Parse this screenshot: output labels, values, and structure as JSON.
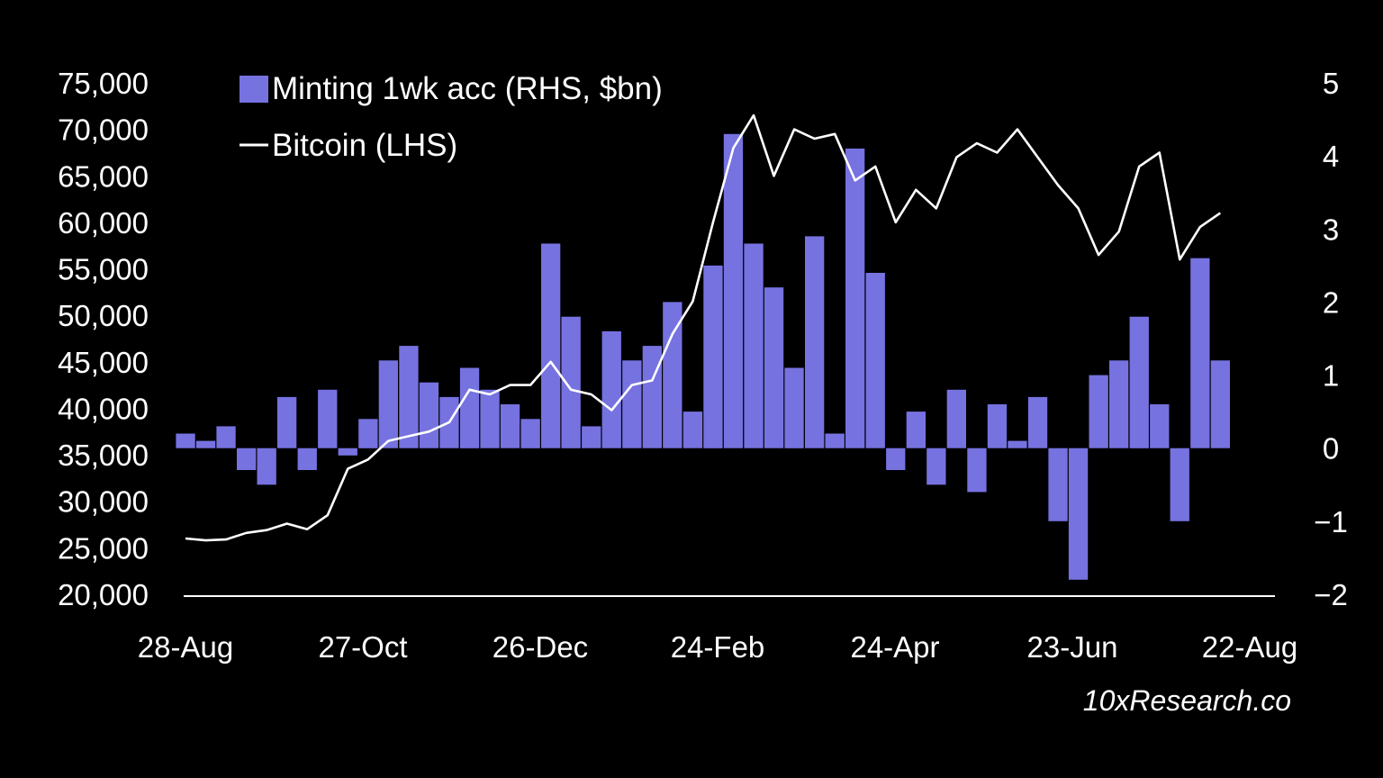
{
  "chart_data": {
    "type": "bar",
    "title": "",
    "xlabel": "",
    "ylabel": "",
    "x_ticks": [
      "28-Aug",
      "27-Oct",
      "26-Dec",
      "24-Feb",
      "24-Apr",
      "23-Jun",
      "22-Aug"
    ],
    "x_range": [
      "2023-08-28",
      "2024-08-22"
    ],
    "y_left": {
      "label": "",
      "ylim": [
        20000,
        75000
      ],
      "ticks": [
        "75,000",
        "70,000",
        "65,000",
        "60,000",
        "55,000",
        "50,000",
        "45,000",
        "40,000",
        "35,000",
        "30,000",
        "25,000",
        "20,000"
      ]
    },
    "y_right": {
      "label": "",
      "ylim": [
        -2,
        5
      ],
      "ticks": [
        "5",
        "4",
        "3",
        "2",
        "1",
        "0",
        "−1",
        "−2"
      ]
    },
    "legend_position": "top-left",
    "grid": false,
    "series": [
      {
        "name": "Minting 1wk acc (RHS, $bn)",
        "kind": "bar",
        "axis": "right",
        "color": "#7672e0",
        "x": [
          "2023-08-28",
          "2023-09-04",
          "2023-09-11",
          "2023-09-18",
          "2023-09-25",
          "2023-10-02",
          "2023-10-09",
          "2023-10-16",
          "2023-10-23",
          "2023-10-30",
          "2023-11-06",
          "2023-11-13",
          "2023-11-20",
          "2023-11-27",
          "2023-12-04",
          "2023-12-11",
          "2023-12-18",
          "2023-12-25",
          "2024-01-01",
          "2024-01-08",
          "2024-01-15",
          "2024-01-22",
          "2024-01-29",
          "2024-02-05",
          "2024-02-12",
          "2024-02-19",
          "2024-02-26",
          "2024-03-04",
          "2024-03-11",
          "2024-03-18",
          "2024-03-25",
          "2024-04-01",
          "2024-04-08",
          "2024-04-15",
          "2024-04-22",
          "2024-04-29",
          "2024-05-06",
          "2024-05-13",
          "2024-05-20",
          "2024-05-27",
          "2024-06-03",
          "2024-06-10",
          "2024-06-17",
          "2024-06-24",
          "2024-07-01",
          "2024-07-08",
          "2024-07-15",
          "2024-07-22",
          "2024-07-29",
          "2024-08-05",
          "2024-08-12",
          "2024-08-19"
        ],
        "values": [
          0.2,
          0.1,
          0.3,
          -0.3,
          -0.5,
          0.7,
          -0.3,
          0.8,
          -0.1,
          0.4,
          1.2,
          1.4,
          0.9,
          0.7,
          1.1,
          0.8,
          0.6,
          0.4,
          2.8,
          1.8,
          0.3,
          1.6,
          1.2,
          1.4,
          2.0,
          0.5,
          2.5,
          4.3,
          2.8,
          2.2,
          1.1,
          2.9,
          0.2,
          4.1,
          2.4,
          -0.3,
          0.5,
          -0.5,
          0.8,
          -0.6,
          0.6,
          0.1,
          0.7,
          -1.0,
          -1.8,
          1.0,
          1.2,
          1.8,
          0.6,
          -1.0,
          2.6,
          1.2
        ]
      },
      {
        "name": "Bitcoin (LHS)",
        "kind": "line",
        "axis": "left",
        "color": "#ffffff",
        "x": [
          "2023-08-28",
          "2023-09-04",
          "2023-09-11",
          "2023-09-18",
          "2023-09-25",
          "2023-10-02",
          "2023-10-09",
          "2023-10-16",
          "2023-10-23",
          "2023-10-30",
          "2023-11-06",
          "2023-11-13",
          "2023-11-20",
          "2023-11-27",
          "2023-12-04",
          "2023-12-11",
          "2023-12-18",
          "2023-12-25",
          "2024-01-01",
          "2024-01-08",
          "2024-01-15",
          "2024-01-22",
          "2024-01-29",
          "2024-02-05",
          "2024-02-12",
          "2024-02-19",
          "2024-02-26",
          "2024-03-04",
          "2024-03-11",
          "2024-03-18",
          "2024-03-25",
          "2024-04-01",
          "2024-04-08",
          "2024-04-15",
          "2024-04-22",
          "2024-04-29",
          "2024-05-06",
          "2024-05-13",
          "2024-05-20",
          "2024-05-27",
          "2024-06-03",
          "2024-06-10",
          "2024-06-17",
          "2024-06-24",
          "2024-07-01",
          "2024-07-08",
          "2024-07-15",
          "2024-07-22",
          "2024-07-29",
          "2024-08-05",
          "2024-08-12",
          "2024-08-19"
        ],
        "values": [
          26000,
          25800,
          25900,
          26600,
          26900,
          27600,
          27000,
          28500,
          33500,
          34500,
          36500,
          37000,
          37500,
          38500,
          42000,
          41500,
          42500,
          42500,
          45000,
          42000,
          41500,
          39800,
          42500,
          43000,
          48000,
          51500,
          60000,
          68000,
          71500,
          65000,
          70000,
          69000,
          69500,
          64500,
          66000,
          60000,
          63500,
          61500,
          67000,
          68500,
          67500,
          70000,
          67000,
          64000,
          61500,
          56500,
          59000,
          66000,
          67500,
          56000,
          59500,
          61000
        ]
      }
    ],
    "source": "10xResearch.co"
  }
}
